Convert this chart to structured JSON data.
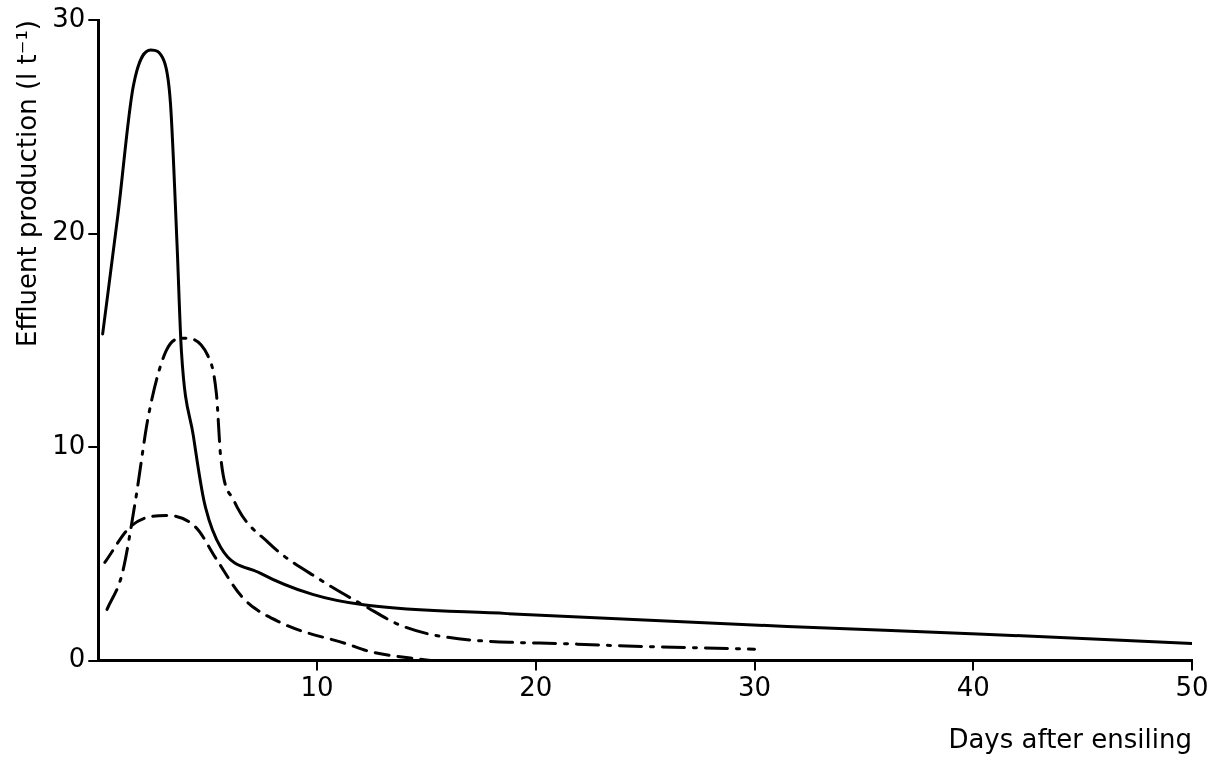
{
  "chart_data": {
    "type": "line",
    "xlabel": "Days after ensiling",
    "ylabel": "Effluent production (l t⁻¹)",
    "xlim": [
      0,
      50
    ],
    "xticks": [
      10,
      20,
      30,
      40,
      50
    ],
    "ylim": [
      0,
      30
    ],
    "yticks": [
      0,
      10,
      20,
      30
    ],
    "grid": false,
    "legend": false,
    "marker": "none",
    "series": [
      {
        "color": "#000000",
        "line_style": "solid",
        "x": [
          0.2,
          0.9,
          1.6,
          2.4,
          3.0,
          3.3,
          3.6,
          3.8,
          4.35,
          4.85,
          5.6,
          7.4,
          9.8,
          12.2,
          18.7,
          31.5,
          40.2,
          50
        ],
        "values": [
          15.3,
          20.9,
          26.9,
          28.6,
          28.1,
          26.1,
          19.5,
          14.5,
          10.5,
          7.4,
          5.3,
          4.1,
          3.1,
          2.6,
          2.2,
          1.6,
          1.25,
          0.8
        ]
      },
      {
        "color": "#000000",
        "line_style": "dashdot",
        "x": [
          0.4,
          1.1,
          1.7,
          2.3,
          3.1,
          3.9,
          5.0,
          5.4,
          5.6,
          6.2,
          7.8,
          10.2,
          12.2,
          13.8,
          15.6,
          21.9,
          30.0
        ],
        "values": [
          2.4,
          4.1,
          7.5,
          11.5,
          14.5,
          15.1,
          14.3,
          12.5,
          9.5,
          7.5,
          5.5,
          3.75,
          2.55,
          1.66,
          1.15,
          0.77,
          0.53
        ]
      },
      {
        "color": "#000000",
        "line_style": "dashed",
        "x": [
          0.3,
          1.5,
          3.1,
          4.45,
          5.4,
          6.6,
          8.4,
          11.4,
          12.4,
          15.2
        ],
        "values": [
          4.6,
          6.3,
          6.8,
          6.25,
          4.75,
          2.95,
          1.75,
          0.77,
          0.43,
          0
        ]
      }
    ]
  }
}
